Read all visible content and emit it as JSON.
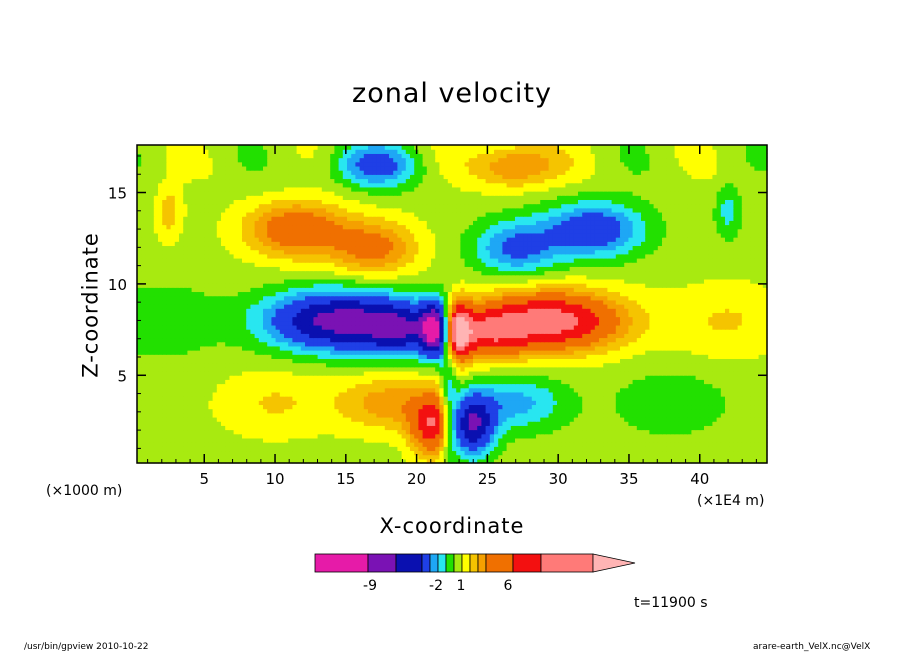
{
  "chart_data": {
    "type": "heatmap",
    "title": "zonal velocity",
    "xlabel": "X-coordinate",
    "ylabel": "Z-coordinate",
    "x_unit_label": "(×1000 m)",
    "x_scale_label": "(×1E4 m)",
    "time_label": "t=11900 s",
    "xlim": [
      0.25,
      44.75
    ],
    "ylim": [
      0.2,
      17.6
    ],
    "x_ticks": [
      5,
      10,
      15,
      20,
      25,
      30,
      35,
      40
    ],
    "y_ticks": [
      5,
      10,
      15
    ],
    "colorbar": {
      "colors": [
        "#e61ba8",
        "#7a12b4",
        "#0a10b0",
        "#1f3fe6",
        "#1ea7f5",
        "#28e6f0",
        "#22e000",
        "#a8ea10",
        "#ffff00",
        "#f5c400",
        "#f5a000",
        "#f07000",
        "#f31010",
        "#ff7a78",
        "#ffb4b4"
      ],
      "tick_labels": [
        "-9",
        "-2",
        "1",
        "6"
      ],
      "extend": "max"
    },
    "fields": [
      {
        "x": 14.5,
        "z": 8.0,
        "amp": -8.5,
        "sx": 5.0,
        "sz": 1.6
      },
      {
        "x": 19.5,
        "z": 7.5,
        "amp": -5.5,
        "sx": 3.0,
        "sz": 1.4
      },
      {
        "x": 21.3,
        "z": 7.5,
        "amp": -9.5,
        "sx": 0.9,
        "sz": 1.5
      },
      {
        "x": 29.5,
        "z": 8.0,
        "amp": 8.5,
        "sx": 5.0,
        "sz": 1.6
      },
      {
        "x": 24.5,
        "z": 7.3,
        "amp": 5.5,
        "sx": 3.0,
        "sz": 1.4
      },
      {
        "x": 22.9,
        "z": 7.5,
        "amp": 9.0,
        "sx": 0.9,
        "sz": 1.5
      },
      {
        "x": 21.2,
        "z": 2.3,
        "amp": 7.0,
        "sx": 1.6,
        "sz": 1.6
      },
      {
        "x": 18.0,
        "z": 3.5,
        "amp": 3.0,
        "sx": 3.5,
        "sz": 1.5
      },
      {
        "x": 23.8,
        "z": 2.3,
        "amp": -8.0,
        "sx": 1.6,
        "sz": 1.6
      },
      {
        "x": 27.0,
        "z": 3.5,
        "amp": -3.0,
        "sx": 3.5,
        "sz": 1.5
      },
      {
        "x": 11.5,
        "z": 13.0,
        "amp": 5.0,
        "sx": 3.5,
        "sz": 1.5
      },
      {
        "x": 17.0,
        "z": 12.0,
        "amp": 4.0,
        "sx": 3.0,
        "sz": 1.5
      },
      {
        "x": 32.5,
        "z": 13.0,
        "amp": -5.0,
        "sx": 3.5,
        "sz": 1.5
      },
      {
        "x": 27.0,
        "z": 12.0,
        "amp": -4.0,
        "sx": 3.0,
        "sz": 1.5
      },
      {
        "x": 17.0,
        "z": 16.5,
        "amp": -4.0,
        "sx": 3.0,
        "sz": 1.2
      },
      {
        "x": 27.0,
        "z": 16.5,
        "amp": 4.0,
        "sx": 3.0,
        "sz": 1.2
      },
      {
        "x": 2.5,
        "z": 14.0,
        "amp": 2.0,
        "sx": 0.9,
        "sz": 1.5
      },
      {
        "x": 42.0,
        "z": 14.0,
        "amp": -2.0,
        "sx": 0.9,
        "sz": 1.5
      },
      {
        "x": 2.0,
        "z": 8.0,
        "amp": -1.5,
        "sx": 4.0,
        "sz": 2.0
      },
      {
        "x": 42.0,
        "z": 8.0,
        "amp": 1.5,
        "sx": 4.0,
        "sz": 2.0
      },
      {
        "x": 38.0,
        "z": 3.5,
        "amp": -1.5,
        "sx": 4.0,
        "sz": 1.8
      },
      {
        "x": 10.0,
        "z": 3.5,
        "amp": 1.5,
        "sx": 4.0,
        "sz": 1.8
      }
    ]
  },
  "footer": {
    "left": "/usr/bin/gpview   2010-10-22",
    "right": "arare-earth_VelX.nc@VelX"
  }
}
